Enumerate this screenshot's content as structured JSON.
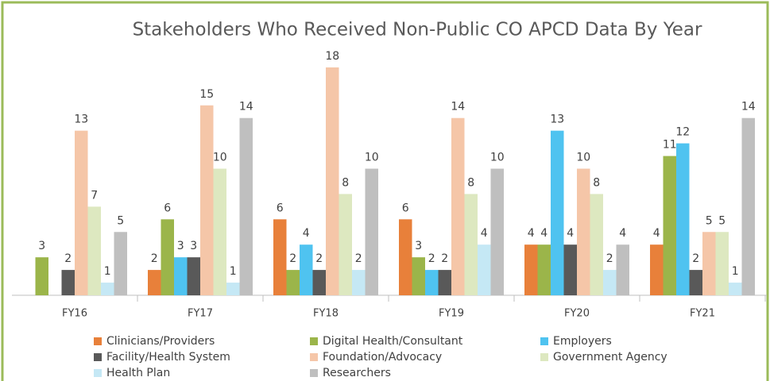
{
  "chart_data": {
    "type": "bar",
    "title": "Stakeholders Who Received Non-Public CO APCD Data By Year",
    "categories": [
      "FY16",
      "FY17",
      "FY18",
      "FY19",
      "FY20",
      "FY21"
    ],
    "series": [
      {
        "name": "Clinicians/Providers",
        "color": "#e8803a",
        "values": [
          null,
          2,
          6,
          6,
          4,
          4
        ]
      },
      {
        "name": "Digital Health/Consultant",
        "color": "#9bb54a",
        "values": [
          3,
          6,
          2,
          3,
          4,
          11
        ]
      },
      {
        "name": "Employers",
        "color": "#4fc3f0",
        "values": [
          null,
          3,
          4,
          2,
          13,
          12
        ]
      },
      {
        "name": "Facility/Health System",
        "color": "#595959",
        "values": [
          2,
          3,
          2,
          2,
          4,
          2
        ]
      },
      {
        "name": "Foundation/Advocacy",
        "color": "#f5c6a8",
        "values": [
          13,
          15,
          18,
          14,
          10,
          5
        ]
      },
      {
        "name": "Government Agency",
        "color": "#dde8c0",
        "values": [
          7,
          10,
          8,
          8,
          8,
          5
        ]
      },
      {
        "name": "Health Plan",
        "color": "#c5e8f5",
        "values": [
          1,
          1,
          2,
          4,
          2,
          1
        ]
      },
      {
        "name": "Researchers",
        "color": "#bfbfbf",
        "values": [
          5,
          14,
          10,
          10,
          4,
          14
        ]
      }
    ]
  }
}
